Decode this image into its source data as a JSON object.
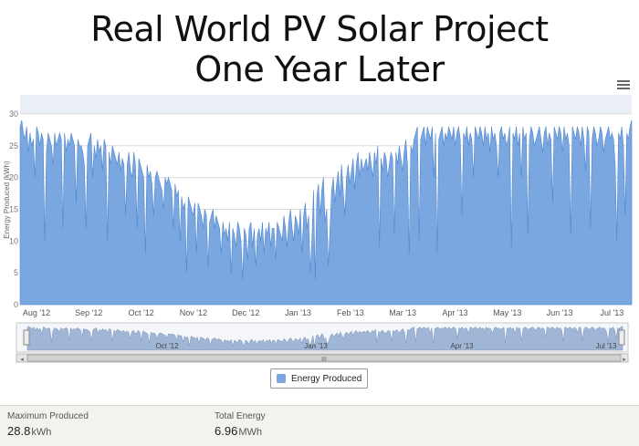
{
  "header": {
    "title_line1": "Real World PV Solar Project",
    "title_line2": "One Year Later"
  },
  "legend": {
    "label": "Energy Produced"
  },
  "footer": {
    "max_label": "Maximum Produced",
    "max_value": "28.8",
    "max_unit": "kWh",
    "total_label": "Total Energy",
    "total_value": "6.96",
    "total_unit": "MWh"
  },
  "colors": {
    "area": "#7aa7e0",
    "area_stroke": "#4f86cf",
    "navigator": "#9fb6d6"
  },
  "chart_data": {
    "type": "area",
    "title": "",
    "ylabel": "Energy Produced (kWh)",
    "ylim": [
      0,
      33
    ],
    "yticks": [
      0,
      5,
      10,
      15,
      20,
      25,
      30
    ],
    "x_tick_labels": [
      "Aug '12",
      "Sep '12",
      "Oct '12",
      "Nov '12",
      "Dec '12",
      "Jan '13",
      "Feb '13",
      "Mar '13",
      "Apr '13",
      "May '13",
      "Jun '13",
      "Jul '13"
    ],
    "navigator_labels": [
      "Oct '12",
      "Jan '13",
      "Apr '13",
      "Jul '13"
    ],
    "series": [
      {
        "name": "Energy Produced",
        "x_start": "2012-07-25",
        "values": [
          28,
          29,
          27,
          26,
          28,
          24,
          27,
          25,
          26,
          20,
          28,
          27,
          25,
          27,
          26,
          10,
          24,
          27,
          26,
          25,
          22,
          27,
          25,
          26,
          27,
          26,
          12,
          27,
          24,
          26,
          25,
          27,
          26,
          25,
          16,
          26,
          25,
          25,
          24,
          22,
          12,
          25,
          26,
          27,
          20,
          25,
          23,
          26,
          24,
          25,
          21,
          26,
          25,
          10,
          24,
          22,
          25,
          24,
          23,
          22,
          24,
          21,
          23,
          22,
          14,
          22,
          24,
          21,
          20,
          24,
          22,
          12,
          23,
          22,
          21,
          20,
          8,
          22,
          20,
          21,
          19,
          14,
          20,
          21,
          20,
          19,
          18,
          15,
          20,
          19,
          20,
          19,
          18,
          12,
          19,
          17,
          18,
          10,
          17,
          15,
          16,
          5,
          17,
          16,
          15,
          14,
          16,
          8,
          16,
          15,
          14,
          12,
          15,
          14,
          6,
          13,
          14,
          15,
          12,
          14,
          13,
          12,
          8,
          13,
          11,
          12,
          10,
          13,
          5,
          12,
          11,
          9,
          13,
          12,
          10,
          4,
          12,
          11,
          7,
          12,
          13,
          9,
          12,
          6,
          11,
          12,
          10,
          13,
          8,
          12,
          11,
          13,
          9,
          12,
          12,
          7,
          13,
          12,
          11,
          10,
          14,
          12,
          9,
          13,
          15,
          12,
          10,
          14,
          13,
          11,
          15,
          8,
          14,
          16,
          12,
          14,
          5,
          10,
          18,
          4,
          17,
          19,
          14,
          18,
          20,
          13,
          15,
          6,
          12,
          18,
          20,
          16,
          19,
          21,
          17,
          22,
          18,
          14,
          20,
          22,
          19,
          21,
          23,
          18,
          22,
          24,
          20,
          23,
          21,
          22,
          23,
          21,
          24,
          22,
          20,
          24,
          22,
          25,
          9,
          23,
          21,
          24,
          23,
          20,
          22,
          24,
          23,
          11,
          24,
          22,
          25,
          23,
          21,
          24,
          26,
          22,
          8,
          25,
          24,
          26,
          27,
          28,
          10,
          26,
          27,
          28,
          25,
          28,
          27,
          26,
          28,
          20,
          27,
          8,
          26,
          27,
          28,
          25,
          27,
          26,
          28,
          27,
          26,
          28,
          25,
          27,
          28,
          26,
          14,
          27,
          26,
          28,
          25,
          27,
          26,
          20,
          28,
          27,
          26,
          28,
          27,
          25,
          28,
          26,
          27,
          24,
          28,
          26,
          27,
          25,
          20,
          27,
          28,
          26,
          27,
          25,
          26,
          28,
          9,
          27,
          26,
          28,
          25,
          27,
          20,
          28,
          26,
          27,
          11,
          26,
          28,
          27,
          25,
          26,
          27,
          28,
          26,
          24,
          27,
          28,
          25,
          27,
          26,
          16,
          28,
          27,
          26,
          28,
          27,
          24,
          28,
          26,
          27,
          25,
          11,
          28,
          27,
          26,
          28,
          27,
          25,
          28,
          26,
          21,
          28,
          27,
          12,
          26,
          28,
          27,
          25,
          26,
          28,
          27,
          24,
          26,
          27,
          28,
          26,
          27,
          26,
          22,
          10,
          27,
          26,
          28,
          25,
          14,
          27,
          26,
          28,
          29
        ]
      }
    ]
  }
}
